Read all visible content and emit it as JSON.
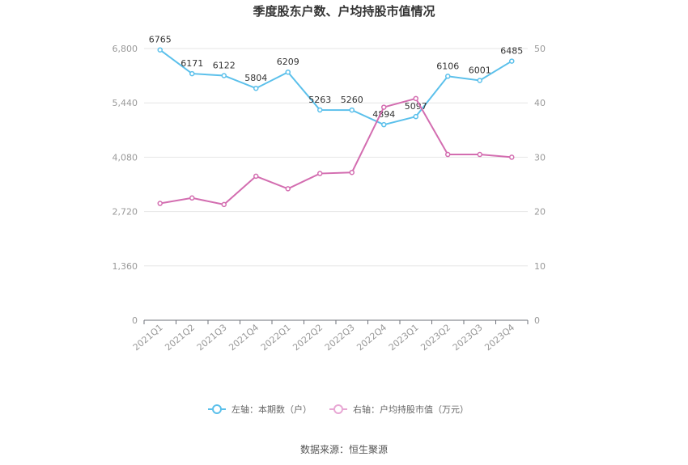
{
  "chart_data": {
    "type": "line",
    "title": "季度股东户数、户均持股市值情况",
    "categories": [
      "2021Q1",
      "2021Q2",
      "2021Q3",
      "2021Q4",
      "2022Q1",
      "2022Q2",
      "2022Q3",
      "2022Q4",
      "2023Q1",
      "2023Q2",
      "2023Q3",
      "2023Q4"
    ],
    "left_axis": {
      "min": 0,
      "max": 6800,
      "ticks": [
        "0",
        "1,360",
        "2,720",
        "4,080",
        "5,440",
        "6,800"
      ]
    },
    "right_axis": {
      "min": 0,
      "max": 50,
      "ticks": [
        "0",
        "10",
        "20",
        "30",
        "40",
        "50"
      ]
    },
    "series": [
      {
        "name": "左轴：本期数（户）",
        "axis": "left",
        "color": "#5bc0eb",
        "values": [
          6765,
          6171,
          6122,
          5804,
          6209,
          5263,
          5260,
          4894,
          5097,
          6106,
          6001,
          6485
        ],
        "labels": [
          "6765",
          "6171",
          "6122",
          "5804",
          "6209",
          "5263",
          "5260",
          "4894",
          "5097",
          "6106",
          "6001",
          "6485"
        ]
      },
      {
        "name": "右轴：户均持股市值（万元）",
        "axis": "right",
        "color": "#d36db0",
        "values": [
          21.5,
          22.5,
          21.3,
          26.5,
          24.2,
          27.0,
          27.2,
          39.2,
          40.8,
          30.5,
          30.5,
          30.0
        ]
      }
    ],
    "grid": true,
    "legend_position": "bottom"
  },
  "source_text": "数据来源：恒生聚源"
}
